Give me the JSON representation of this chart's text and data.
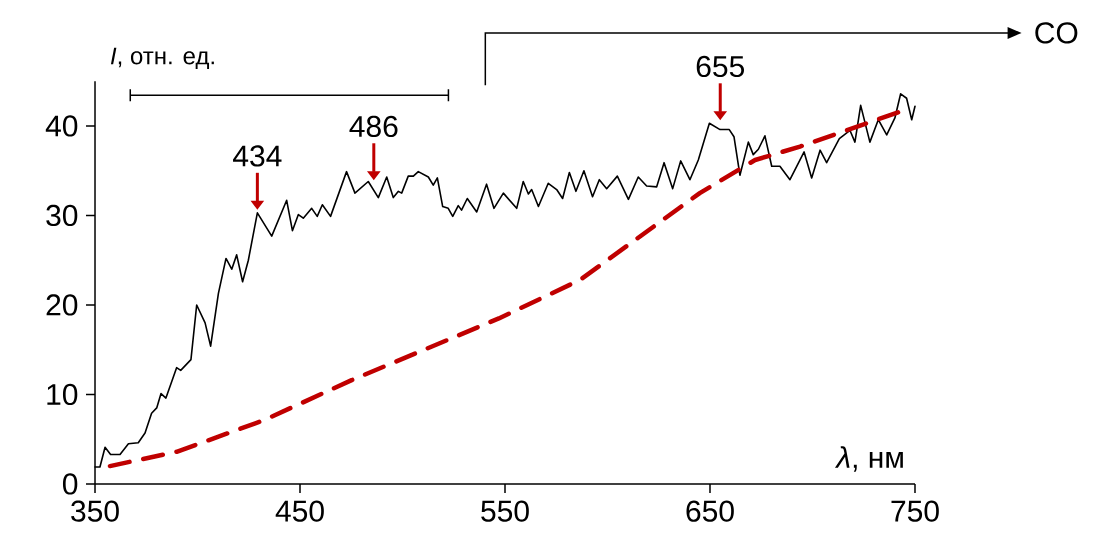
{
  "chart_data": {
    "type": "line",
    "xlabel": "*λ*, нм",
    "ylabel": "*I*, отн. ед.",
    "xlim": [
      350,
      750
    ],
    "ylim": [
      0,
      45
    ],
    "xticks": [
      350,
      450,
      550,
      650,
      750
    ],
    "yticks": [
      0,
      10,
      20,
      30,
      40
    ],
    "series": [
      {
        "color": "#000000",
        "line_style": "solid",
        "x": [
          350,
          352.4,
          354.9,
          357.6,
          362.2,
          366.3,
          371.1,
          374.4,
          377.6,
          380.1,
          382.2,
          384.6,
          389.8,
          391.8,
          396.8,
          399.6,
          403.7,
          406.4,
          410.2,
          413.9,
          416.7,
          419.1,
          422.0,
          424.8,
          429.2,
          436.2,
          443.5,
          446.3,
          449.2,
          451.6,
          455.7,
          458.4,
          460.9,
          464.9,
          472.7,
          476.8,
          483.3,
          488.2,
          492.3,
          495.5,
          498.0,
          499.6,
          502.8,
          505.3,
          507.7,
          512.6,
          515.0,
          517.0,
          519.6,
          522.3,
          524.5,
          527.2,
          528.8,
          531.6,
          536.2,
          541.0,
          544.6,
          549.2,
          555.7,
          558.9,
          561.4,
          563.0,
          566.3,
          571.1,
          575.2,
          578.1,
          581.4,
          584.6,
          588.5,
          592.7,
          596.0,
          599.6,
          604.8,
          610.2,
          615.0,
          619.1,
          624.0,
          627.6,
          631.8,
          635.7,
          640.2,
          644.3,
          649.7,
          654.9,
          659.4,
          661.7,
          664.6,
          668.7,
          671.1,
          673.6,
          676.8,
          680.1,
          684.1,
          689.0,
          692.3,
          695.9,
          699.6,
          703.7,
          706.9,
          713.1,
          718.3,
          720.7,
          723.5,
          728.0,
          732.1,
          736.2,
          740.2,
          743.0,
          745.9,
          748.4,
          750
        ],
        "values": [
          1.9,
          1.9,
          4.1,
          3.3,
          3.3,
          4.5,
          4.6,
          5.7,
          7.9,
          8.5,
          10.1,
          9.6,
          13.0,
          12.7,
          13.9,
          20.0,
          18.0,
          15.4,
          21.3,
          25.2,
          24.0,
          25.6,
          22.6,
          25.0,
          30.3,
          27.7,
          31.7,
          28.3,
          30.1,
          29.7,
          30.8,
          29.9,
          31.2,
          29.9,
          34.9,
          32.5,
          33.8,
          32.0,
          34.3,
          32.0,
          32.7,
          32.5,
          34.4,
          34.4,
          34.9,
          34.3,
          33.4,
          34.2,
          31.0,
          30.8,
          29.9,
          31.1,
          30.6,
          31.9,
          30.4,
          33.5,
          30.8,
          32.5,
          30.8,
          33.8,
          32.4,
          32.9,
          31.0,
          33.6,
          32.9,
          31.9,
          34.8,
          32.7,
          35.0,
          32.1,
          34.0,
          33.0,
          34.4,
          31.8,
          34.3,
          33.3,
          33.2,
          35.9,
          33.0,
          36.1,
          34.0,
          36.2,
          40.3,
          39.6,
          39.6,
          38.8,
          34.5,
          38.2,
          36.8,
          37.4,
          38.9,
          35.5,
          35.5,
          34.0,
          35.5,
          37.1,
          34.2,
          37.3,
          35.9,
          38.6,
          39.5,
          38.2,
          42.3,
          38.2,
          40.7,
          39.0,
          40.9,
          43.6,
          43.1,
          40.7,
          42.2
        ]
      },
      {
        "color": "#c00000",
        "line_style": "dashed",
        "x": [
          357.3,
          389.8,
          432.1,
          475.2,
          547.0,
          586.6,
          645.0,
          672.0,
          693.9,
          742.7
        ],
        "values": [
          2.0,
          3.6,
          7.1,
          11.6,
          18.5,
          22.8,
          32.5,
          36.2,
          37.7,
          41.6
        ]
      }
    ],
    "annotations": [
      {
        "text": "434",
        "x": 429.2,
        "y": 30.3
      },
      {
        "text": "486",
        "x": 486,
        "y": 33.6
      },
      {
        "text": "655",
        "x": 655,
        "y": 40.3
      },
      "CO"
    ]
  }
}
